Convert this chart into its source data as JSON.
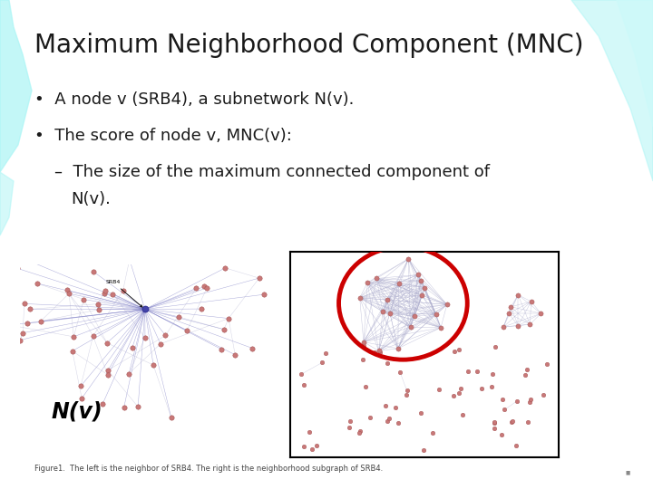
{
  "title": "Maximum Neighborhood Component (MNC)",
  "title_fontsize": 20,
  "bg_color": "#ffffff",
  "teal_color": "#aaf5f5",
  "bullet1": "A node v (SRB4), a subnetwork N(v).",
  "bullet2": "The score of node v, MNC(v):",
  "sub_bullet": "The size of the maximum connected component of\n        N(v).",
  "caption": "Figure1.  The left is the neighbor of SRB4. The right is the neighborhood subgraph of SRB4.",
  "node_color": "#c87878",
  "node_edge_color": "#994444",
  "edge_color_left_hub": "#6666bb",
  "edge_color_left_nn": "#aaaacc",
  "edge_color_right": "#aaaacc",
  "hub_color": "#4444aa",
  "hub_edge_color": "#222288",
  "label_nv": "N(v)",
  "label_srb4": "SRB4",
  "red_ellipse_color": "#cc0000",
  "box_color": "#000000",
  "text_color": "#1a1a1a",
  "bullet_fontsize": 13,
  "sub_bullet_fontsize": 13,
  "caption_fontsize": 6
}
